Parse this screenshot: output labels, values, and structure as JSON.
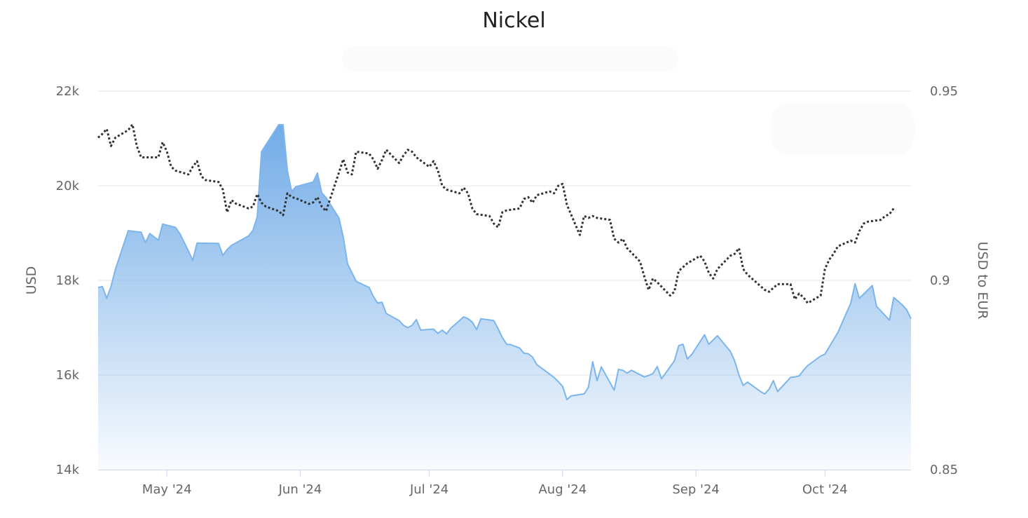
{
  "chart_data": {
    "type": "area",
    "title": "Nickel",
    "x_ticks": [
      "May '24",
      "Jun '24",
      "Jul '24",
      "Aug '24",
      "Sep '24",
      "Oct '24"
    ],
    "y_left": {
      "label": "USD",
      "lim": [
        14000,
        22000
      ],
      "ticks": [
        14000,
        16000,
        18000,
        20000,
        22000
      ],
      "tick_labels": [
        "14k",
        "16k",
        "18k",
        "20k",
        "22k"
      ]
    },
    "y_right": {
      "label": "USD to EUR",
      "lim": [
        0.85,
        0.95
      ],
      "ticks": [
        0.85,
        0.9,
        0.95
      ],
      "tick_labels": [
        "0.85",
        "0.9",
        "0.95"
      ]
    },
    "grid": true,
    "colors": {
      "area_line": "#7cb5ec",
      "area_fill_top": "#6aa7e6",
      "fx_line": "#333333",
      "grid": "#e6e6e6",
      "axis_text": "#666666"
    },
    "series": [
      {
        "axis": "left",
        "style": "area",
        "points": [
          [
            "2024-04-15",
            17850
          ],
          [
            "2024-04-16",
            17870
          ],
          [
            "2024-04-17",
            17620
          ],
          [
            "2024-04-18",
            17870
          ],
          [
            "2024-04-19",
            18230
          ],
          [
            "2024-04-22",
            19050
          ],
          [
            "2024-04-25",
            19020
          ],
          [
            "2024-04-26",
            18800
          ],
          [
            "2024-04-27",
            18990
          ],
          [
            "2024-04-29",
            18850
          ],
          [
            "2024-04-30",
            19190
          ],
          [
            "2024-05-03",
            19120
          ],
          [
            "2024-05-04",
            18990
          ],
          [
            "2024-05-06",
            18620
          ],
          [
            "2024-05-07",
            18420
          ],
          [
            "2024-05-08",
            18790
          ],
          [
            "2024-05-13",
            18780
          ],
          [
            "2024-05-14",
            18530
          ],
          [
            "2024-05-15",
            18650
          ],
          [
            "2024-05-16",
            18740
          ],
          [
            "2024-05-20",
            18940
          ],
          [
            "2024-05-21",
            19060
          ],
          [
            "2024-05-22",
            19350
          ],
          [
            "2024-05-23",
            20720
          ],
          [
            "2024-05-27",
            21290
          ],
          [
            "2024-05-28",
            21290
          ],
          [
            "2024-05-29",
            20320
          ],
          [
            "2024-05-30",
            19880
          ],
          [
            "2024-05-31",
            19980
          ],
          [
            "2024-06-04",
            20080
          ],
          [
            "2024-06-05",
            20270
          ],
          [
            "2024-06-06",
            19850
          ],
          [
            "2024-06-07",
            19750
          ],
          [
            "2024-06-10",
            19320
          ],
          [
            "2024-06-11",
            18920
          ],
          [
            "2024-06-12",
            18350
          ],
          [
            "2024-06-14",
            17980
          ],
          [
            "2024-06-17",
            17850
          ],
          [
            "2024-06-18",
            17660
          ],
          [
            "2024-06-19",
            17520
          ],
          [
            "2024-06-20",
            17540
          ],
          [
            "2024-06-21",
            17300
          ],
          [
            "2024-06-24",
            17150
          ],
          [
            "2024-06-25",
            17050
          ],
          [
            "2024-06-26",
            17000
          ],
          [
            "2024-06-27",
            17050
          ],
          [
            "2024-06-28",
            17170
          ],
          [
            "2024-06-29",
            16950
          ],
          [
            "2024-07-02",
            16970
          ],
          [
            "2024-07-03",
            16880
          ],
          [
            "2024-07-04",
            16950
          ],
          [
            "2024-07-05",
            16870
          ],
          [
            "2024-07-06",
            16990
          ],
          [
            "2024-07-09",
            17230
          ],
          [
            "2024-07-10",
            17190
          ],
          [
            "2024-07-11",
            17120
          ],
          [
            "2024-07-12",
            16960
          ],
          [
            "2024-07-13",
            17190
          ],
          [
            "2024-07-16",
            17150
          ],
          [
            "2024-07-17",
            16980
          ],
          [
            "2024-07-18",
            16790
          ],
          [
            "2024-07-19",
            16650
          ],
          [
            "2024-07-20",
            16640
          ],
          [
            "2024-07-22",
            16570
          ],
          [
            "2024-07-23",
            16460
          ],
          [
            "2024-07-24",
            16450
          ],
          [
            "2024-07-25",
            16380
          ],
          [
            "2024-07-26",
            16220
          ],
          [
            "2024-07-30",
            15950
          ],
          [
            "2024-07-31",
            15860
          ],
          [
            "2024-08-01",
            15760
          ],
          [
            "2024-08-02",
            15480
          ],
          [
            "2024-08-03",
            15560
          ],
          [
            "2024-08-06",
            15600
          ],
          [
            "2024-08-07",
            15740
          ],
          [
            "2024-08-08",
            16280
          ],
          [
            "2024-08-09",
            15880
          ],
          [
            "2024-08-10",
            16170
          ],
          [
            "2024-08-13",
            15680
          ],
          [
            "2024-08-14",
            16120
          ],
          [
            "2024-08-15",
            16100
          ],
          [
            "2024-08-16",
            16040
          ],
          [
            "2024-08-17",
            16100
          ],
          [
            "2024-08-20",
            15960
          ],
          [
            "2024-08-21",
            15990
          ],
          [
            "2024-08-22",
            16030
          ],
          [
            "2024-08-23",
            16180
          ],
          [
            "2024-08-24",
            15920
          ],
          [
            "2024-08-27",
            16300
          ],
          [
            "2024-08-28",
            16620
          ],
          [
            "2024-08-29",
            16650
          ],
          [
            "2024-08-30",
            16340
          ],
          [
            "2024-08-31",
            16430
          ],
          [
            "2024-09-03",
            16850
          ],
          [
            "2024-09-04",
            16650
          ],
          [
            "2024-09-05",
            16740
          ],
          [
            "2024-09-06",
            16830
          ],
          [
            "2024-09-09",
            16500
          ],
          [
            "2024-09-10",
            16300
          ],
          [
            "2024-09-11",
            16000
          ],
          [
            "2024-09-12",
            15780
          ],
          [
            "2024-09-13",
            15850
          ],
          [
            "2024-09-16",
            15650
          ],
          [
            "2024-09-17",
            15600
          ],
          [
            "2024-09-18",
            15700
          ],
          [
            "2024-09-19",
            15880
          ],
          [
            "2024-09-20",
            15650
          ],
          [
            "2024-09-23",
            15950
          ],
          [
            "2024-09-24",
            15960
          ],
          [
            "2024-09-25",
            15980
          ],
          [
            "2024-09-26",
            16100
          ],
          [
            "2024-09-27",
            16200
          ],
          [
            "2024-09-30",
            16400
          ],
          [
            "2024-10-01",
            16440
          ],
          [
            "2024-10-04",
            16900
          ],
          [
            "2024-10-07",
            17520
          ],
          [
            "2024-10-08",
            17930
          ],
          [
            "2024-10-09",
            17620
          ],
          [
            "2024-10-11",
            17800
          ],
          [
            "2024-10-12",
            17890
          ],
          [
            "2024-10-13",
            17450
          ],
          [
            "2024-10-16",
            17160
          ],
          [
            "2024-10-17",
            17640
          ],
          [
            "2024-10-19",
            17480
          ],
          [
            "2024-10-20",
            17380
          ],
          [
            "2024-10-21",
            17190
          ]
        ]
      },
      {
        "axis": "right",
        "style": "dotted",
        "points": [
          [
            "2024-04-15",
            0.9377
          ],
          [
            "2024-04-16",
            0.9387
          ],
          [
            "2024-04-17",
            0.94
          ],
          [
            "2024-04-18",
            0.9355
          ],
          [
            "2024-04-19",
            0.9377
          ],
          [
            "2024-04-22",
            0.9397
          ],
          [
            "2024-04-23",
            0.9412
          ],
          [
            "2024-04-24",
            0.9355
          ],
          [
            "2024-04-25",
            0.9325
          ],
          [
            "2024-04-26",
            0.9325
          ],
          [
            "2024-04-29",
            0.9325
          ],
          [
            "2024-04-30",
            0.9365
          ],
          [
            "2024-05-01",
            0.934
          ],
          [
            "2024-05-02",
            0.93
          ],
          [
            "2024-05-03",
            0.929
          ],
          [
            "2024-05-06",
            0.928
          ],
          [
            "2024-05-07",
            0.93
          ],
          [
            "2024-05-08",
            0.9315
          ],
          [
            "2024-05-09",
            0.9275
          ],
          [
            "2024-05-10",
            0.9265
          ],
          [
            "2024-05-13",
            0.926
          ],
          [
            "2024-05-14",
            0.924
          ],
          [
            "2024-05-15",
            0.918
          ],
          [
            "2024-05-16",
            0.9212
          ],
          [
            "2024-05-17",
            0.9203
          ],
          [
            "2024-05-20",
            0.919
          ],
          [
            "2024-05-21",
            0.9195
          ],
          [
            "2024-05-22",
            0.9228
          ],
          [
            "2024-05-23",
            0.9205
          ],
          [
            "2024-05-24",
            0.9195
          ],
          [
            "2024-05-27",
            0.9183
          ],
          [
            "2024-05-28",
            0.9172
          ],
          [
            "2024-05-29",
            0.923
          ],
          [
            "2024-05-30",
            0.922
          ],
          [
            "2024-05-31",
            0.9217
          ],
          [
            "2024-06-03",
            0.9202
          ],
          [
            "2024-06-04",
            0.9206
          ],
          [
            "2024-06-05",
            0.922
          ],
          [
            "2024-06-06",
            0.9195
          ],
          [
            "2024-06-07",
            0.9183
          ],
          [
            "2024-06-10",
            0.9285
          ],
          [
            "2024-06-11",
            0.932
          ],
          [
            "2024-06-12",
            0.9285
          ],
          [
            "2024-06-13",
            0.928
          ],
          [
            "2024-06-14",
            0.934
          ],
          [
            "2024-06-17",
            0.9335
          ],
          [
            "2024-06-18",
            0.932
          ],
          [
            "2024-06-19",
            0.9295
          ],
          [
            "2024-06-20",
            0.9318
          ],
          [
            "2024-06-21",
            0.9345
          ],
          [
            "2024-06-24",
            0.931
          ],
          [
            "2024-06-25",
            0.933
          ],
          [
            "2024-06-26",
            0.9345
          ],
          [
            "2024-06-27",
            0.934
          ],
          [
            "2024-06-28",
            0.9325
          ],
          [
            "2024-07-01",
            0.93
          ],
          [
            "2024-07-02",
            0.9315
          ],
          [
            "2024-07-03",
            0.929
          ],
          [
            "2024-07-04",
            0.925
          ],
          [
            "2024-07-05",
            0.924
          ],
          [
            "2024-07-08",
            0.923
          ],
          [
            "2024-07-09",
            0.9245
          ],
          [
            "2024-07-10",
            0.923
          ],
          [
            "2024-07-11",
            0.919
          ],
          [
            "2024-07-12",
            0.9175
          ],
          [
            "2024-07-15",
            0.917
          ],
          [
            "2024-07-16",
            0.915
          ],
          [
            "2024-07-17",
            0.914
          ],
          [
            "2024-07-18",
            0.918
          ],
          [
            "2024-07-19",
            0.9185
          ],
          [
            "2024-07-22",
            0.919
          ],
          [
            "2024-07-23",
            0.9215
          ],
          [
            "2024-07-24",
            0.922
          ],
          [
            "2024-07-25",
            0.9205
          ],
          [
            "2024-07-26",
            0.9225
          ],
          [
            "2024-07-29",
            0.9235
          ],
          [
            "2024-07-30",
            0.923
          ],
          [
            "2024-07-31",
            0.925
          ],
          [
            "2024-08-01",
            0.9255
          ],
          [
            "2024-08-02",
            0.92
          ],
          [
            "2024-08-05",
            0.912
          ],
          [
            "2024-08-06",
            0.917
          ],
          [
            "2024-08-07",
            0.9165
          ],
          [
            "2024-08-08",
            0.917
          ],
          [
            "2024-08-09",
            0.9165
          ],
          [
            "2024-08-12",
            0.916
          ],
          [
            "2024-08-13",
            0.911
          ],
          [
            "2024-08-14",
            0.91
          ],
          [
            "2024-08-15",
            0.911
          ],
          [
            "2024-08-16",
            0.9085
          ],
          [
            "2024-08-19",
            0.905
          ],
          [
            "2024-08-20",
            0.901
          ],
          [
            "2024-08-21",
            0.8975
          ],
          [
            "2024-08-22",
            0.9005
          ],
          [
            "2024-08-23",
            0.8995
          ],
          [
            "2024-08-26",
            0.896
          ],
          [
            "2024-08-27",
            0.897
          ],
          [
            "2024-08-28",
            0.9025
          ],
          [
            "2024-08-29",
            0.9035
          ],
          [
            "2024-08-30",
            0.9045
          ],
          [
            "2024-09-02",
            0.9065
          ],
          [
            "2024-09-03",
            0.905
          ],
          [
            "2024-09-04",
            0.902
          ],
          [
            "2024-09-05",
            0.9005
          ],
          [
            "2024-09-06",
            0.903
          ],
          [
            "2024-09-09",
            0.9065
          ],
          [
            "2024-09-10",
            0.907
          ],
          [
            "2024-09-11",
            0.9085
          ],
          [
            "2024-09-12",
            0.903
          ],
          [
            "2024-09-13",
            0.9015
          ],
          [
            "2024-09-16",
            0.8985
          ],
          [
            "2024-09-17",
            0.8975
          ],
          [
            "2024-09-18",
            0.897
          ],
          [
            "2024-09-19",
            0.898
          ],
          [
            "2024-09-20",
            0.899
          ],
          [
            "2024-09-23",
            0.899
          ],
          [
            "2024-09-24",
            0.895
          ],
          [
            "2024-09-25",
            0.8965
          ],
          [
            "2024-09-26",
            0.8955
          ],
          [
            "2024-09-27",
            0.894
          ],
          [
            "2024-09-30",
            0.896
          ],
          [
            "2024-10-01",
            0.903
          ],
          [
            "2024-10-02",
            0.9055
          ],
          [
            "2024-10-03",
            0.907
          ],
          [
            "2024-10-04",
            0.909
          ],
          [
            "2024-10-07",
            0.9105
          ],
          [
            "2024-10-08",
            0.91
          ],
          [
            "2024-10-09",
            0.913
          ],
          [
            "2024-10-10",
            0.915
          ],
          [
            "2024-10-11",
            0.9155
          ],
          [
            "2024-10-14",
            0.916
          ],
          [
            "2024-10-15",
            0.917
          ],
          [
            "2024-10-16",
            0.9175
          ],
          [
            "2024-10-17",
            0.919
          ]
        ]
      }
    ]
  }
}
